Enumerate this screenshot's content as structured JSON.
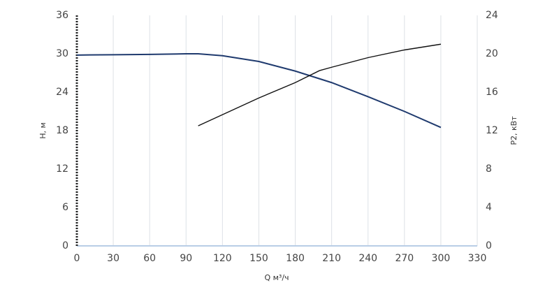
{
  "chart_data": {
    "type": "line",
    "x_label": "Q м³/ч",
    "y_label": "H, м",
    "y2_label": "P2, кВт",
    "xlim": [
      0,
      330
    ],
    "xticks": [
      0,
      30,
      60,
      90,
      120,
      150,
      180,
      210,
      240,
      270,
      300,
      330
    ],
    "ylim": [
      0,
      36
    ],
    "yticks": [
      0,
      6,
      12,
      18,
      24,
      30,
      36
    ],
    "y2lim": [
      0,
      24
    ],
    "y2ticks": [
      0,
      4,
      8,
      12,
      16,
      20,
      24
    ],
    "grid": true,
    "series": [
      {
        "color": "#1f3a6e",
        "x": [
          0,
          30,
          60,
          90,
          100,
          120,
          150,
          180,
          210,
          240,
          270,
          300
        ],
        "values": [
          29.8,
          29.85,
          29.9,
          30,
          30,
          29.7,
          28.8,
          27.3,
          25.5,
          23.3,
          21,
          18.5
        ]
      },
      {
        "color": "#111111",
        "axis": "y2",
        "x": [
          100,
          150,
          180,
          200,
          210,
          240,
          270,
          300
        ],
        "values": [
          12.5,
          15.4,
          17.0,
          18.25,
          18.6,
          19.6,
          20.4,
          21.0
        ]
      }
    ]
  }
}
